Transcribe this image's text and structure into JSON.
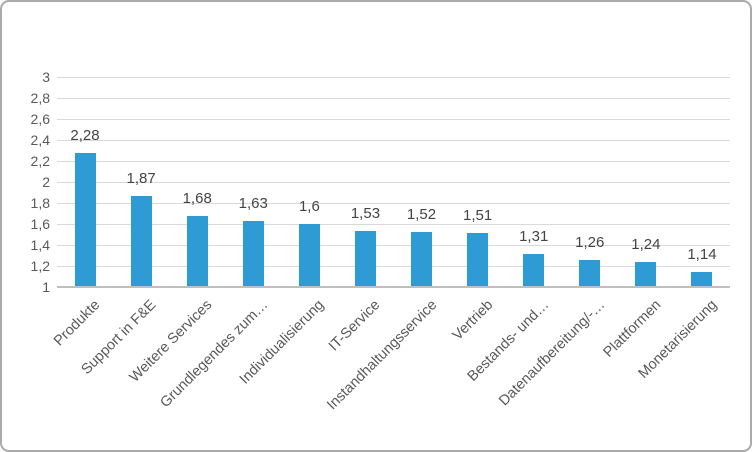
{
  "chart_data": {
    "type": "bar",
    "title": "",
    "xlabel": "",
    "ylabel": "",
    "categories": [
      "Produkte",
      "Support in F&E",
      "Weitere Services",
      "Grundlegendes zum…",
      "Individualisierung",
      "IT-Service",
      "Instandhaltungsservice",
      "Vertrieb",
      "Bestands- und…",
      "Datenaufbereitung/-…",
      "Plattformen",
      "Monetarisierung"
    ],
    "values": [
      2.28,
      1.87,
      1.68,
      1.63,
      1.6,
      1.53,
      1.52,
      1.51,
      1.31,
      1.26,
      1.24,
      1.14
    ],
    "value_labels": [
      "2,28",
      "1,87",
      "1,68",
      "1,63",
      "1,6",
      "1,53",
      "1,52",
      "1,51",
      "1,31",
      "1,26",
      "1,24",
      "1,14"
    ],
    "ylim": [
      1,
      3
    ],
    "y_ticks": [
      1,
      1.2,
      1.4,
      1.6,
      1.8,
      2,
      2.2,
      2.4,
      2.6,
      2.8,
      3
    ],
    "y_tick_labels": [
      "1",
      "1,2",
      "1,4",
      "1,6",
      "1,8",
      "2",
      "2,2",
      "2,4",
      "2,6",
      "2,8",
      "3"
    ],
    "grid": true,
    "legend": false,
    "bar_color": "#2e9bd5",
    "gridline_color": "#d9d9d9",
    "axis_line_color": "#bfbfbf",
    "tick_text_color": "#595959",
    "data_label_color": "#444444",
    "category_text_color": "#595959"
  }
}
